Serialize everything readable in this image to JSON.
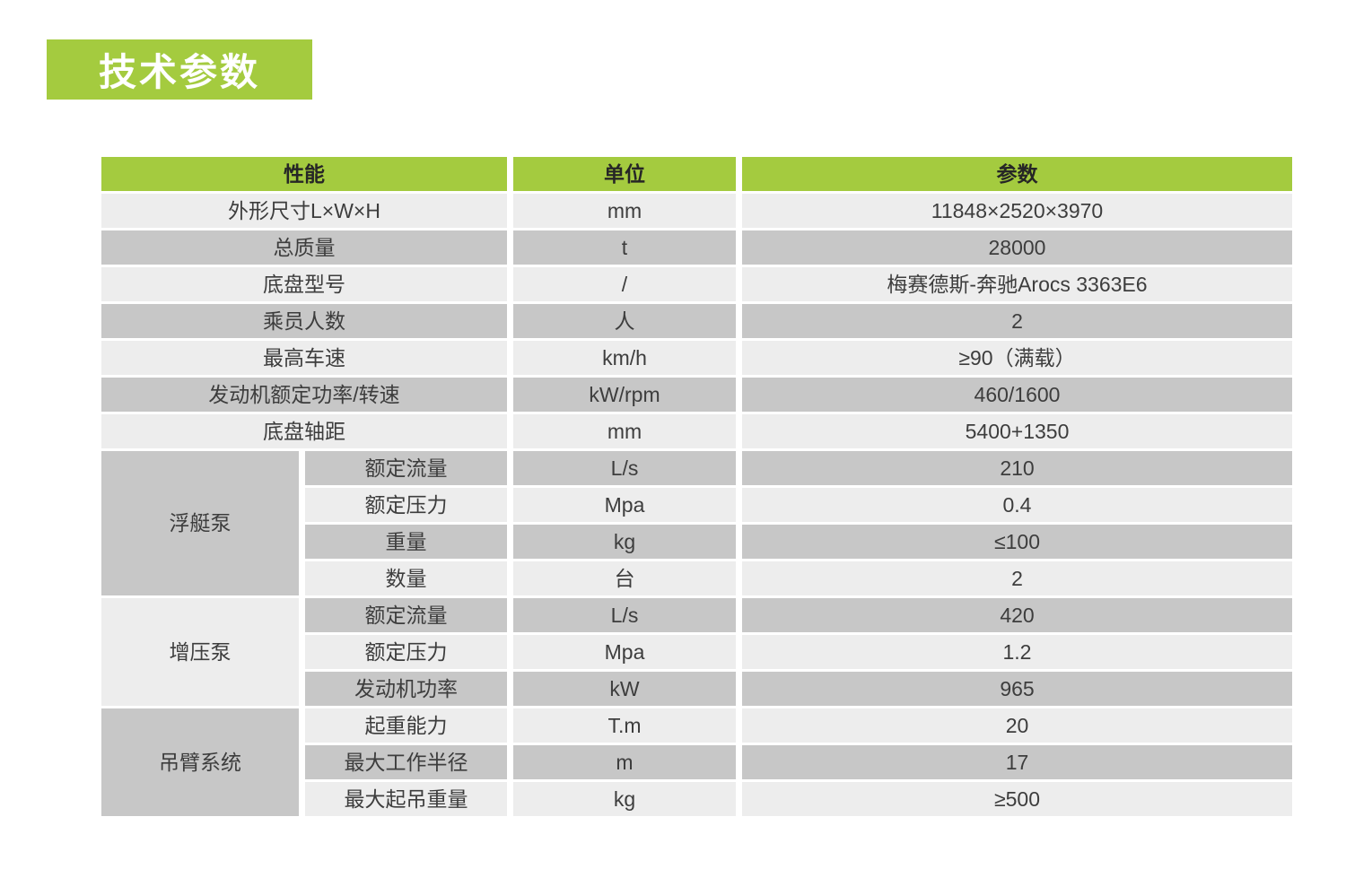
{
  "page": {
    "title": "技术参数"
  },
  "colors": {
    "accent_green": "#a4cb3f",
    "row_light": "#ededed",
    "row_dark": "#c7c7c7",
    "title_text": "#ffffff",
    "header_text": "#262626",
    "body_text": "#3d3d3d",
    "page_background": "#ffffff"
  },
  "table": {
    "headers": [
      "性能",
      "单位",
      "参数"
    ],
    "rows": [
      {
        "label": "外形尺寸L×W×H",
        "unit": "mm",
        "value": "11848×2520×3970"
      },
      {
        "label": "总质量",
        "unit": "t",
        "value": "28000"
      },
      {
        "label": "底盘型号",
        "unit": "/",
        "value": "梅赛德斯-奔驰Arocs 3363E6"
      },
      {
        "label": "乘员人数",
        "unit": "人",
        "value": "2"
      },
      {
        "label": "最高车速",
        "unit": "km/h",
        "value": "≥90（满载）"
      },
      {
        "label": "发动机额定功率/转速",
        "unit": "kW/rpm",
        "value": "460/1600"
      },
      {
        "label": "底盘轴距",
        "unit": "mm",
        "value": "5400+1350"
      }
    ],
    "groups": [
      {
        "name": "浮艇泵",
        "rows": [
          {
            "label": "额定流量",
            "unit": "L/s",
            "value": "210"
          },
          {
            "label": "额定压力",
            "unit": "Mpa",
            "value": "0.4"
          },
          {
            "label": "重量",
            "unit": "kg",
            "value": "≤100"
          },
          {
            "label": "数量",
            "unit": "台",
            "value": "2"
          }
        ]
      },
      {
        "name": "增压泵",
        "rows": [
          {
            "label": "额定流量",
            "unit": "L/s",
            "value": "420"
          },
          {
            "label": "额定压力",
            "unit": "Mpa",
            "value": "1.2"
          },
          {
            "label": "发动机功率",
            "unit": "kW",
            "value": "965"
          }
        ]
      },
      {
        "name": "吊臂系统",
        "rows": [
          {
            "label": "起重能力",
            "unit": "T.m",
            "value": "20"
          },
          {
            "label": "最大工作半径",
            "unit": "m",
            "value": "17"
          },
          {
            "label": "最大起吊重量",
            "unit": "kg",
            "value": "≥500"
          }
        ]
      }
    ]
  }
}
